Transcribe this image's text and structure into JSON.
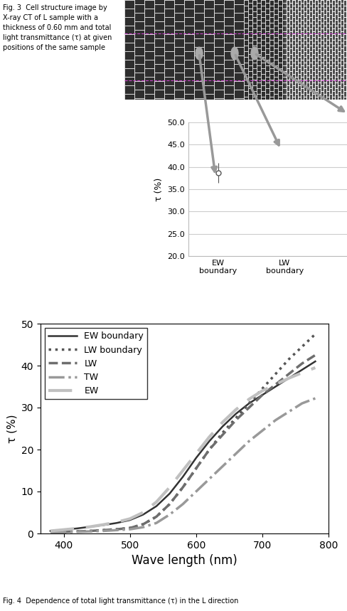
{
  "captions": {
    "fig3": [
      "Fig. 3  Cell structure image by",
      "X-ray CT of L sample with a",
      "thickness of 0.60 mm and total",
      "light transmittance (τ) at given",
      "positions of the same sample"
    ],
    "fig4": "Fig. 4  Dependence of total light transmittance (τ) in the L direction"
  },
  "chart_data": [
    {
      "type": "scatter",
      "ylabel": "τ (%)",
      "categories": [
        "EW boundary",
        "LW boundary"
      ],
      "values": [
        38.7,
        null
      ],
      "errors": [
        2.2,
        null
      ],
      "color": "#555555",
      "marker": "circle",
      "ylim": [
        20,
        50
      ],
      "yticks": [
        {
          "value": 20,
          "label": "20.0"
        },
        {
          "value": 25,
          "label": "25.0"
        },
        {
          "value": 30,
          "label": "30.0"
        },
        {
          "value": 35,
          "label": "35.0"
        },
        {
          "value": 40,
          "label": "40.0"
        },
        {
          "value": 45,
          "label": "45.0"
        },
        {
          "value": 50,
          "label": "50.0"
        }
      ],
      "grid": true
    },
    {
      "type": "line",
      "xlabel": "Wave length (nm)",
      "ylabel": "τ (%)",
      "x": [
        380,
        400,
        420,
        440,
        460,
        480,
        500,
        520,
        540,
        560,
        580,
        600,
        620,
        640,
        660,
        680,
        700,
        720,
        740,
        760,
        780
      ],
      "series": [
        {
          "name": "EW boundary",
          "color": "#333333",
          "line_style": "solid",
          "values": [
            0.6,
            0.9,
            1.2,
            1.6,
            2.0,
            2.5,
            3.2,
            4.5,
            6.5,
            9.5,
            13.5,
            18,
            22,
            25.5,
            28.5,
            31,
            33,
            35,
            37,
            39,
            41
          ]
        },
        {
          "name": "LW boundary",
          "color": "#555555",
          "line_style": "dotted",
          "values": [
            0.3,
            0.4,
            0.5,
            0.6,
            0.8,
            1.0,
            1.3,
            2.2,
            4,
            7,
            11,
            15.5,
            20,
            24,
            27.5,
            31,
            34.5,
            38,
            41.5,
            44.5,
            47.5
          ]
        },
        {
          "name": "LW",
          "color": "#6e6e6e",
          "line_style": "dashed",
          "values": [
            0.3,
            0.4,
            0.5,
            0.6,
            0.8,
            1.0,
            1.3,
            2.2,
            4,
            7,
            11,
            15.5,
            20,
            23.5,
            27,
            30,
            33,
            35.5,
            38,
            40.5,
            42.5
          ]
        },
        {
          "name": "TW",
          "color": "#999999",
          "line_style": "dashdot",
          "values": [
            0.2,
            0.3,
            0.4,
            0.5,
            0.6,
            0.8,
            1.0,
            1.5,
            2.5,
            4.5,
            7,
            10,
            13,
            16,
            19,
            22,
            24.5,
            27,
            29,
            31,
            32.2
          ]
        },
        {
          "name": "EW",
          "color": "#c0c0c0",
          "line_style": "long dashed",
          "values": [
            0.6,
            0.9,
            1.2,
            1.6,
            2.1,
            2.7,
            3.5,
            5,
            7.5,
            11,
            15,
            19,
            23,
            26.5,
            29.5,
            32,
            34,
            35.5,
            37,
            38.3,
            39.5
          ]
        }
      ],
      "xlim": [
        365,
        800
      ],
      "xticks": [
        400,
        500,
        600,
        700,
        800
      ],
      "ylim": [
        0,
        50
      ],
      "yticks": [
        0,
        10,
        20,
        30,
        40,
        50
      ],
      "grid": false,
      "legend": "upper left"
    }
  ]
}
